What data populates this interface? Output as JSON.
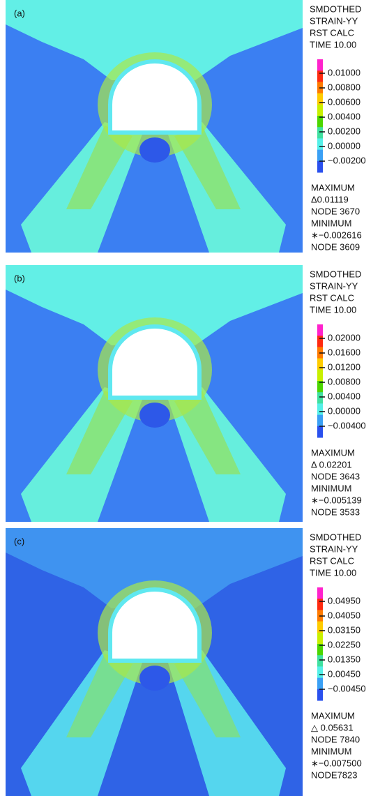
{
  "panels": [
    {
      "label": "(a)",
      "header": [
        "SMDOTHED",
        "STRAIN-YY",
        "RST CALC",
        "TIME 10.00"
      ],
      "legend": [
        "0.01000",
        "0.00800",
        "0.00600",
        "0.00400",
        "0.00200",
        "0.00000",
        "−0.00200"
      ],
      "info": [
        "MAXIMUM",
        "Δ0.01119",
        "NODE 3670",
        "MINIMUM",
        "∗−0.002616",
        "NODE 3609"
      ]
    },
    {
      "label": "(b)",
      "header": [
        "SMDOTHED",
        "STRAIN-YY",
        "RST CALC",
        "TIME 10.00"
      ],
      "legend": [
        "0.02000",
        "0.01600",
        "0.01200",
        "0.00800",
        "0.00400",
        "0.00000",
        "−0.00400"
      ],
      "info": [
        "MAXIMUM",
        "Δ 0.02201",
        "NODE 3643",
        "MINIMUM",
        "∗−0.005139",
        "NODE 3533"
      ]
    },
    {
      "label": "(c)",
      "header": [
        "SMDOTHED",
        "STRAIN-YY",
        "RST CALC",
        "TIME 10.00"
      ],
      "legend": [
        "0.04950",
        "0.04050",
        "0.03150",
        "0.02250",
        "0.01350",
        "0.00450",
        "−0.00450"
      ],
      "info": [
        "MAXIMUM",
        "△ 0.05631",
        "NODE 7840",
        "MINIMUM",
        "∗−0.007500",
        "NODE7823"
      ]
    }
  ]
}
